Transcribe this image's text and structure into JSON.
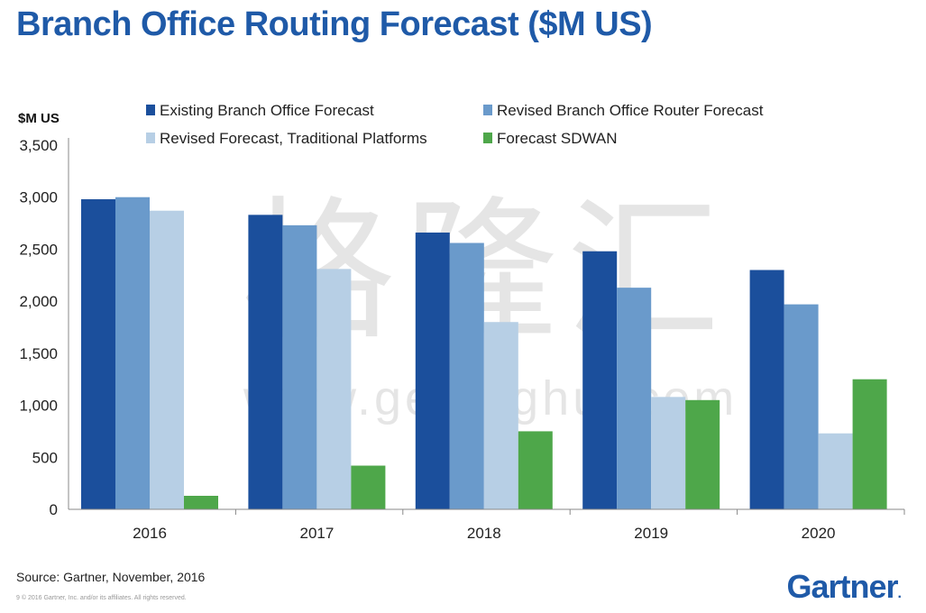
{
  "title": "Branch Office Routing Forecast ($M US)",
  "source": "Source: Gartner, November, 2016",
  "copyright": "9   © 2016 Gartner, Inc. and/or its affiliates. All rights reserved.",
  "brand": "Gartner",
  "watermark": {
    "main": "格隆汇",
    "url": "www.gelonghui.com"
  },
  "chart_data": {
    "type": "bar",
    "title": "Branch Office Routing Forecast ($M US)",
    "ylabel": "$M US",
    "xlabel": "",
    "ylim": [
      0,
      3500
    ],
    "yticks": [
      0,
      500,
      1000,
      1500,
      2000,
      2500,
      3000,
      3500
    ],
    "ytick_labels": [
      "0",
      "500",
      "1,000",
      "1,500",
      "2,000",
      "2,500",
      "3,000",
      "3,500"
    ],
    "categories": [
      "2016",
      "2017",
      "2018",
      "2019",
      "2020"
    ],
    "series": [
      {
        "name": "Existing Branch Office Forecast",
        "color": "#1b4f9c",
        "values": [
          2980,
          2830,
          2660,
          2480,
          2300
        ]
      },
      {
        "name": "Revised Branch Office Router Forecast",
        "color": "#6a9acb",
        "values": [
          3000,
          2730,
          2560,
          2130,
          1970
        ]
      },
      {
        "name": "Revised Forecast, Traditional Platforms",
        "color": "#b7cfe5",
        "values": [
          2870,
          2310,
          1800,
          1080,
          730
        ]
      },
      {
        "name": "Forecast  SDWAN",
        "color": "#4ea74a",
        "values": [
          130,
          420,
          750,
          1050,
          1250
        ]
      }
    ],
    "legend_position": "top"
  }
}
